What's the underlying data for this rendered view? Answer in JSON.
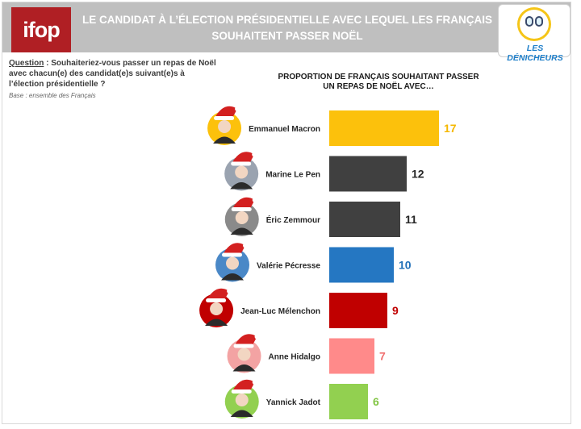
{
  "header": {
    "logo_text": "ifop",
    "title_line1": "LE CANDIDAT À L’ÉLECTION PRÉSIDENTIELLE AVEC LEQUEL LES FRANÇAIS",
    "title_line2": "SOUHAITENT PASSER NOËL",
    "partner_logo_text": "LES DÉNICHEURS"
  },
  "question": {
    "label": "Question",
    "text": " : Souhaiteriez-vous passer un repas de Noël avec chacun(e) des candidat(e)s suivant(e)s à l’élection présidentielle ?",
    "base": "Base : ensemble des Français"
  },
  "chart_data": {
    "type": "bar",
    "orientation": "horizontal",
    "title_line1": "PROPORTION DE FRANÇAIS SOUHAITANT PASSER",
    "title_line2": "UN REPAS DE NOËL AVEC…",
    "categories": [
      "Emmanuel Macron",
      "Marine Le Pen",
      "Éric Zemmour",
      "Valérie Pécresse",
      "Jean-Luc Mélenchon",
      "Anne Hidalgo",
      "Yannick Jadot"
    ],
    "values": [
      17,
      12,
      11,
      10,
      9,
      7,
      6
    ],
    "colors": [
      "#fcc10c",
      "#404040",
      "#404040",
      "#2577c2",
      "#c00000",
      "#ff8a8a",
      "#92d050"
    ],
    "label_colors": [
      "#f5b800",
      "#262626",
      "#262626",
      "#1f6fb8",
      "#c00000",
      "#f07070",
      "#82c545"
    ],
    "avatar_bg": [
      "#fcc10c",
      "#9aa3b0",
      "#8a8a8a",
      "#4a88c7",
      "#c00000",
      "#f3a3a3",
      "#92d050"
    ],
    "xlim": [
      0,
      20
    ],
    "grid": false,
    "legend": "none"
  }
}
